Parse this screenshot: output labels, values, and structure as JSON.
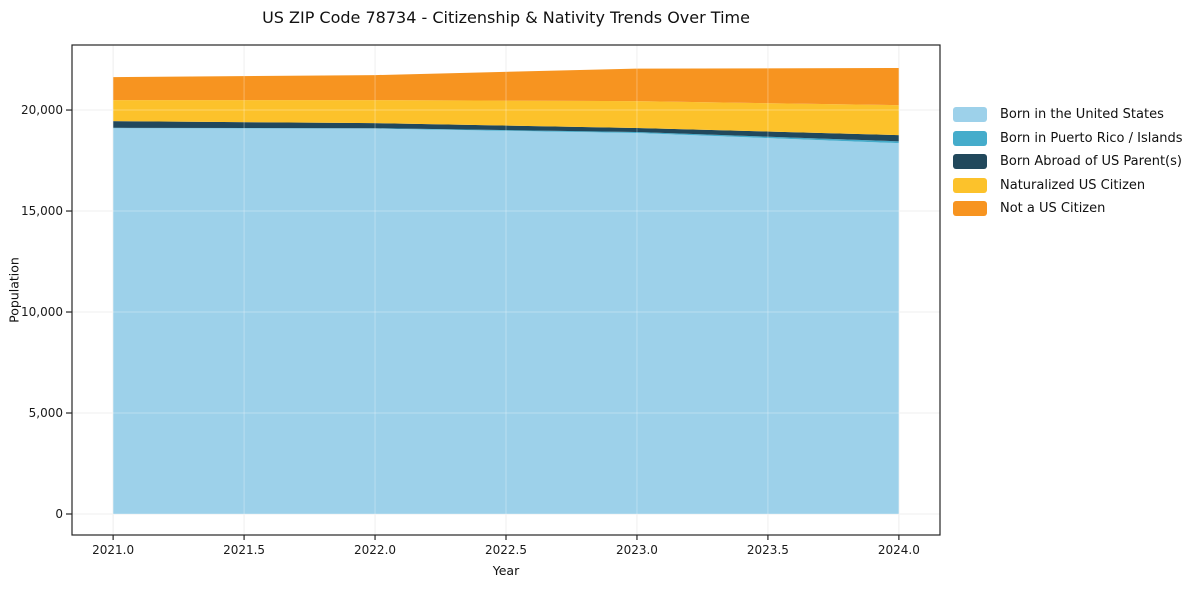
{
  "figure": {
    "title": "US ZIP Code 78734 - Citizenship & Nativity Trends Over Time",
    "xlabel": "Year",
    "ylabel": "Population"
  },
  "chart_data": {
    "type": "area",
    "stacked": true,
    "title": "US ZIP Code 78734 - Citizenship & Nativity Trends Over Time",
    "xlabel": "Year",
    "ylabel": "Population",
    "x": [
      2021,
      2022,
      2023,
      2024
    ],
    "series": [
      {
        "name": "Born in the United States",
        "color": "#9dd1ea",
        "values": [
          19100,
          19080,
          18860,
          18360
        ]
      },
      {
        "name": "Born in Puerto Rico / Islands",
        "color": "#45accb",
        "values": [
          20,
          20,
          50,
          90
        ]
      },
      {
        "name": "Born Abroad of US Parent(s)",
        "color": "#21485c",
        "values": [
          330,
          250,
          200,
          310
        ]
      },
      {
        "name": "Naturalized US Citizen",
        "color": "#fcc22b",
        "values": [
          1040,
          1140,
          1330,
          1480
        ]
      },
      {
        "name": "Not a US Citizen",
        "color": "#f79420",
        "values": [
          1140,
          1240,
          1610,
          1840
        ]
      }
    ],
    "xlim": [
      2020.843,
      2024.157
    ],
    "ylim": [
      -1040,
      23220
    ],
    "xticks": {
      "values": [
        2021.0,
        2021.5,
        2022.0,
        2022.5,
        2023.0,
        2023.5,
        2024.0
      ],
      "labels": [
        "2021.0",
        "2021.5",
        "2022.0",
        "2022.5",
        "2023.0",
        "2023.5",
        "2024.0"
      ]
    },
    "yticks": {
      "values": [
        0,
        5000,
        10000,
        15000,
        20000
      ],
      "labels": [
        "0",
        "5,000",
        "10,000",
        "15,000",
        "20,000"
      ]
    },
    "grid": true,
    "grid_color": "#e9e9e9",
    "spine_color": "#262626",
    "tick_text_color": "#1a1a1a",
    "legend_position": "right"
  }
}
